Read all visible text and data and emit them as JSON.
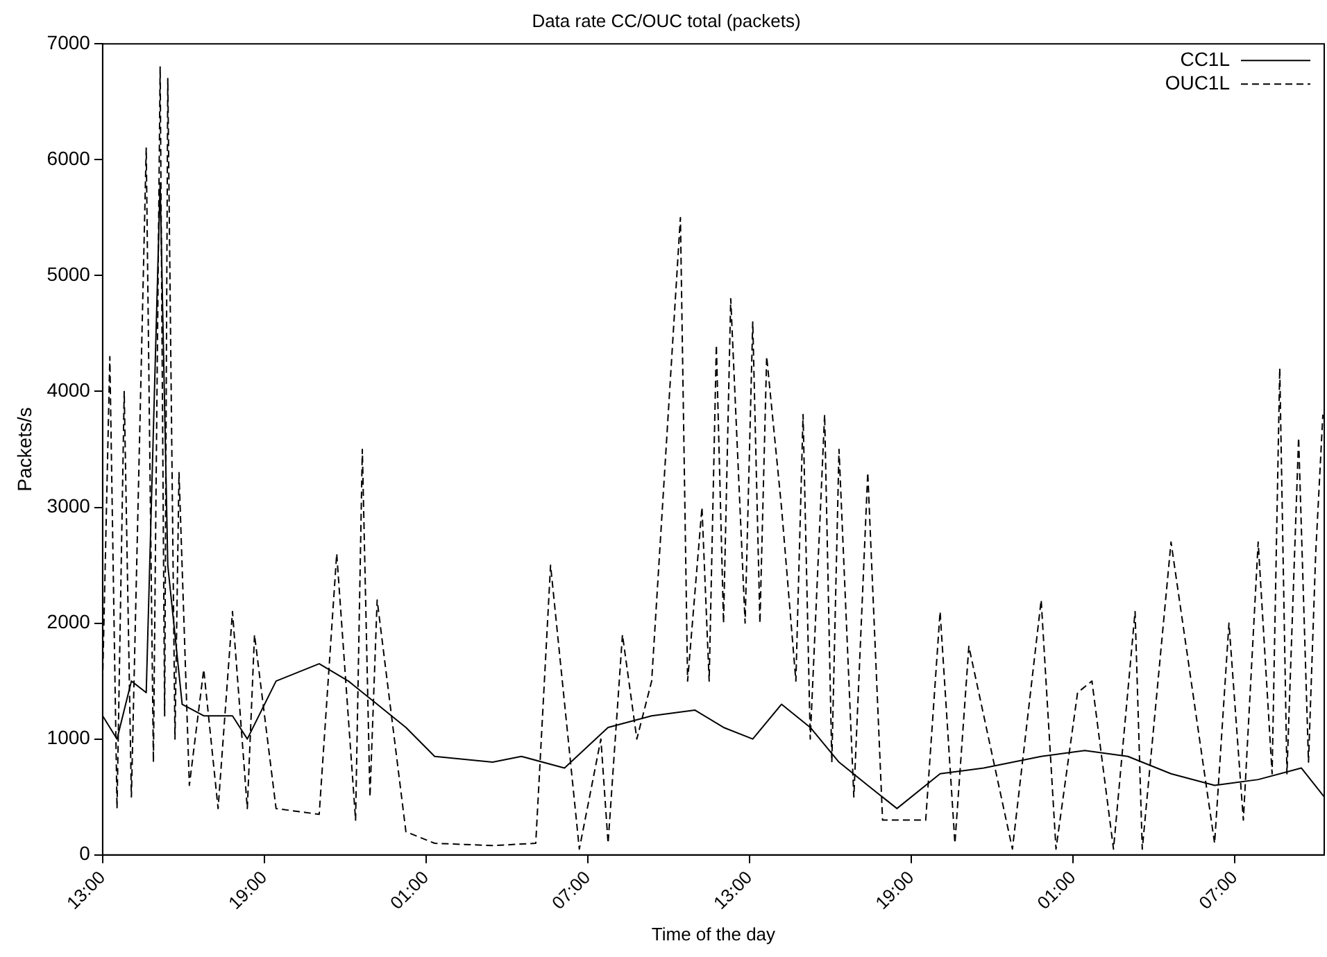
{
  "chart_data": {
    "type": "line",
    "title": "Data rate CC/OUC total (packets)",
    "xlabel": "Time of the day",
    "ylabel": "Packets/s",
    "xlim": [
      "--01-01T13:00",
      "--01-03T10:19"
    ],
    "xticks": [
      {
        "value": "--01-01T13:00",
        "label": "13:00"
      },
      {
        "value": "--01-01T19:00",
        "label": "19:00"
      },
      {
        "value": "--01-02T01:00",
        "label": "01:00"
      },
      {
        "value": "--01-02T07:00",
        "label": "07:00"
      },
      {
        "value": "--01-02T13:00",
        "label": "13:00"
      },
      {
        "value": "--01-02T19:00",
        "label": "19:00"
      },
      {
        "value": "--01-03T01:00",
        "label": "01:00"
      },
      {
        "value": "--01-03T07:00",
        "label": "07:00"
      }
    ],
    "ylim": [
      0,
      7000
    ],
    "yticks": [
      0,
      1000,
      2000,
      3000,
      4000,
      5000,
      6000,
      7000
    ],
    "grid": false,
    "legend": "top right",
    "marker": "none",
    "series": [
      {
        "name": "CC1L",
        "color": "#000000",
        "line_style": "solid",
        "x": [
          "--01-01T13:00",
          "--01-01T13:32",
          "--01-01T14:04",
          "--01-01T14:37",
          "--01-01T15:08",
          "--01-01T15:25",
          "--01-01T15:57",
          "--01-01T16:45",
          "--01-01T17:49",
          "--01-01T18:22",
          "--01-01T19:26",
          "--01-01T21:02",
          "--01-01T22:07",
          "--01-01T23:11",
          "--01-02T00:15",
          "--01-02T01:19",
          "--01-02T03:28",
          "--01-02T04:32",
          "--01-02T06:08",
          "--01-02T07:45",
          "--01-02T09:22",
          "--01-02T10:58",
          "--01-02T12:02",
          "--01-02T13:07",
          "--01-02T14:11",
          "--01-02T15:15",
          "--01-02T16:19",
          "--01-02T17:23",
          "--01-02T18:28",
          "--01-02T20:04",
          "--01-02T21:41",
          "--01-02T23:49",
          "--01-03T01:26",
          "--01-03T03:02",
          "--01-03T04:38",
          "--01-03T06:15",
          "--01-03T07:52",
          "--01-03T09:28",
          "--01-03T10:19"
        ],
        "values": [
          1200,
          1000,
          1500,
          1400,
          5800,
          2500,
          1300,
          1200,
          1200,
          1000,
          1500,
          1650,
          1500,
          1300,
          1100,
          850,
          800,
          850,
          750,
          1100,
          1200,
          1250,
          1100,
          1000,
          1300,
          1100,
          800,
          600,
          400,
          700,
          750,
          850,
          900,
          850,
          700,
          600,
          650,
          750,
          500
        ]
      },
      {
        "name": "OUC1L",
        "color": "#000000",
        "line_style": "dashed",
        "x": [
          "--01-01T13:00",
          "--01-01T13:16",
          "--01-01T13:32",
          "--01-01T13:48",
          "--01-01T14:04",
          "--01-01T14:37",
          "--01-01T14:53",
          "--01-01T15:08",
          "--01-01T15:18",
          "--01-01T15:25",
          "--01-01T15:41",
          "--01-01T15:50",
          "--01-01T16:13",
          "--01-01T16:45",
          "--01-01T17:17",
          "--01-01T17:49",
          "--01-01T18:22",
          "--01-01T18:38",
          "--01-01T19:26",
          "--01-01T21:02",
          "--01-01T21:41",
          "--01-01T22:23",
          "--01-01T22:38",
          "--01-01T22:55",
          "--01-01T23:11",
          "--01-02T00:15",
          "--01-02T01:19",
          "--01-02T03:28",
          "--01-02T05:04",
          "--01-02T05:37",
          "--01-02T06:41",
          "--01-02T07:29",
          "--01-02T07:45",
          "--01-02T08:17",
          "--01-02T08:49",
          "--01-02T09:22",
          "--01-02T10:26",
          "--01-02T10:42",
          "--01-02T11:14",
          "--01-02T11:30",
          "--01-02T11:46",
          "--01-02T12:02",
          "--01-02T12:18",
          "--01-02T12:50",
          "--01-02T13:07",
          "--01-02T13:23",
          "--01-02T13:38",
          "--01-02T14:11",
          "--01-02T14:43",
          "--01-02T14:59",
          "--01-02T15:15",
          "--01-02T15:47",
          "--01-02T16:03",
          "--01-02T16:19",
          "--01-02T16:52",
          "--01-02T17:23",
          "--01-02T17:56",
          "--01-02T19:32",
          "--01-02T20:04",
          "--01-02T20:37",
          "--01-02T21:08",
          "--01-02T22:45",
          "--01-02T23:49",
          "--01-03T00:22",
          "--01-03T01:10",
          "--01-03T01:42",
          "--01-03T02:30",
          "--01-03T03:18",
          "--01-03T03:34",
          "--01-03T04:38",
          "--01-03T06:15",
          "--01-03T06:47",
          "--01-03T07:19",
          "--01-03T07:52",
          "--01-03T08:23",
          "--01-03T08:40",
          "--01-03T08:56",
          "--01-03T09:22",
          "--01-03T09:44",
          "--01-03T10:00",
          "--01-03T10:16"
        ],
        "values": [
          1500,
          4300,
          400,
          4000,
          500,
          6100,
          800,
          6800,
          1200,
          6700,
          1000,
          3300,
          600,
          1600,
          400,
          2100,
          400,
          1900,
          400,
          350,
          2600,
          300,
          3500,
          500,
          2200,
          200,
          100,
          80,
          100,
          2500,
          50,
          1000,
          100,
          1900,
          1000,
          1500,
          5500,
          1500,
          3000,
          1500,
          4400,
          2000,
          4800,
          2000,
          4600,
          2000,
          4300,
          3000,
          1500,
          3800,
          1000,
          3800,
          800,
          3500,
          500,
          3300,
          300,
          300,
          2100,
          100,
          1800,
          50,
          2200,
          50,
          1400,
          1500,
          50,
          2100,
          50,
          2700,
          100,
          2000,
          300,
          2700,
          700,
          4200,
          700,
          3600,
          800,
          2600,
          3800
        ]
      }
    ]
  }
}
